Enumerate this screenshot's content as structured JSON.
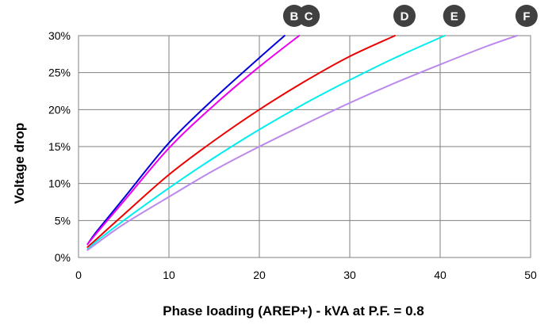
{
  "chart_data": {
    "type": "line",
    "xlabel": "Phase loading (AREP+) - kVA at P.F. = 0.8",
    "ylabel": "Voltage drop",
    "xlim": [
      0,
      50
    ],
    "ylim": [
      0,
      30
    ],
    "x_ticks": [
      "0",
      "10",
      "20",
      "30",
      "40",
      "50"
    ],
    "y_ticks": [
      "0%",
      "5%",
      "10%",
      "15%",
      "20%",
      "25%",
      "30%"
    ],
    "grid": true,
    "series": [
      {
        "name": "B",
        "color": "#0000dd",
        "points": [
          [
            1,
            1.8
          ],
          [
            2,
            3.5
          ],
          [
            5,
            8.0
          ],
          [
            10,
            15.5
          ],
          [
            15,
            21.5
          ],
          [
            20,
            27.0
          ],
          [
            22.8,
            30
          ]
        ]
      },
      {
        "name": "C",
        "color": "#ee00ee",
        "points": [
          [
            1,
            1.8
          ],
          [
            2,
            3.3
          ],
          [
            5,
            7.6
          ],
          [
            10,
            14.8
          ],
          [
            15,
            20.6
          ],
          [
            20,
            25.8
          ],
          [
            24.4,
            30
          ]
        ]
      },
      {
        "name": "D",
        "color": "#ee0000",
        "points": [
          [
            1,
            1.4
          ],
          [
            2,
            2.5
          ],
          [
            5,
            5.8
          ],
          [
            10,
            11.2
          ],
          [
            15,
            15.8
          ],
          [
            20,
            20.0
          ],
          [
            25,
            23.8
          ],
          [
            30,
            27.2
          ],
          [
            35,
            30
          ]
        ]
      },
      {
        "name": "E",
        "color": "#00eeee",
        "points": [
          [
            1,
            1.1
          ],
          [
            2,
            2.2
          ],
          [
            5,
            5.0
          ],
          [
            10,
            9.4
          ],
          [
            15,
            13.5
          ],
          [
            20,
            17.3
          ],
          [
            25,
            20.8
          ],
          [
            30,
            24.0
          ],
          [
            35,
            27.0
          ],
          [
            40.5,
            30
          ]
        ]
      },
      {
        "name": "F",
        "color": "#bb88ee",
        "points": [
          [
            1,
            1.0
          ],
          [
            2,
            1.9
          ],
          [
            5,
            4.5
          ],
          [
            10,
            8.2
          ],
          [
            15,
            11.8
          ],
          [
            20,
            15.0
          ],
          [
            25,
            18.0
          ],
          [
            30,
            20.9
          ],
          [
            35,
            23.6
          ],
          [
            40,
            26.1
          ],
          [
            45,
            28.5
          ],
          [
            48.5,
            30
          ]
        ]
      }
    ]
  }
}
